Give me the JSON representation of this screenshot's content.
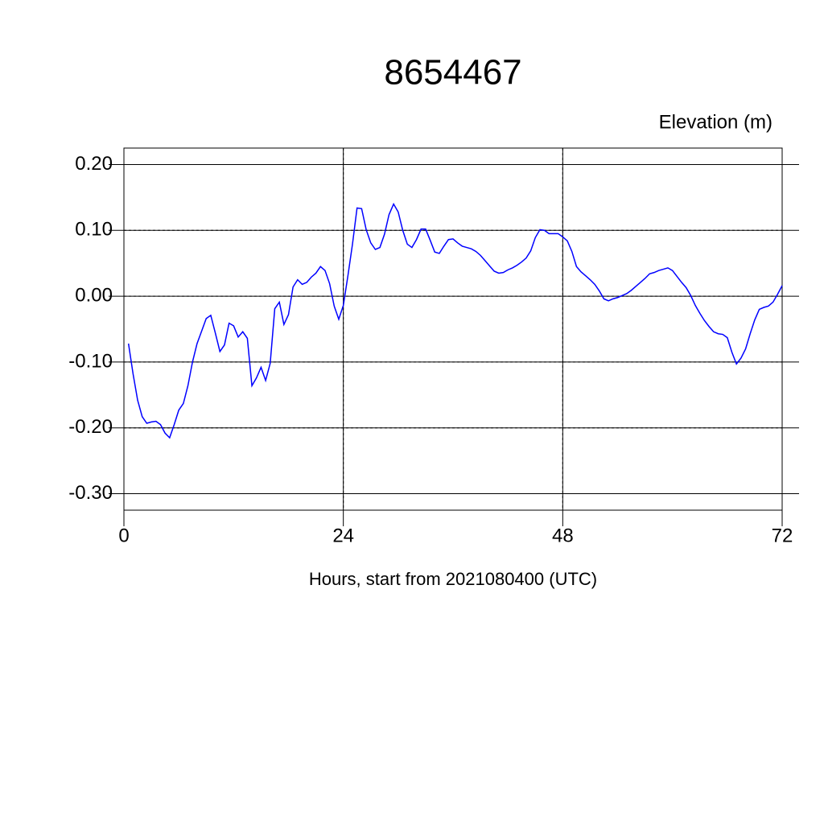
{
  "chart_data": {
    "type": "line",
    "title": "8654467",
    "ylabel": "Elevation (m)",
    "xlabel": "Hours, start from 2021080400 (UTC)",
    "xlim": [
      0,
      72
    ],
    "xticks": [
      0,
      24,
      48,
      72
    ],
    "ylim": [
      -0.325,
      0.225
    ],
    "yticks": [
      {
        "value": -0.3,
        "label": "-0.30"
      },
      {
        "value": -0.2,
        "label": "-0.20"
      },
      {
        "value": -0.1,
        "label": "-0.10"
      },
      {
        "value": 0,
        "label": "0.00"
      },
      {
        "value": 0.1,
        "label": "0.10"
      },
      {
        "value": 0.2,
        "label": "0.20"
      }
    ],
    "grid": true,
    "x": [
      0.5,
      1,
      1.5,
      2,
      2.5,
      3,
      3.5,
      4,
      4.5,
      5,
      5.5,
      6,
      6.5,
      7,
      7.5,
      8,
      8.5,
      9,
      9.5,
      10,
      10.5,
      11,
      11.5,
      12,
      12.5,
      13,
      13.5,
      14,
      14.5,
      15,
      15.5,
      16,
      16.5,
      17,
      17.5,
      18,
      18.5,
      19,
      19.5,
      20,
      20.5,
      21,
      21.5,
      22,
      22.5,
      23,
      23.5,
      24,
      24.5,
      25,
      25.5,
      26,
      26.5,
      27,
      27.5,
      28,
      28.5,
      29,
      29.5,
      30,
      30.5,
      31,
      31.5,
      32,
      32.5,
      33,
      33.5,
      34,
      34.5,
      35,
      35.5,
      36,
      36.5,
      37,
      37.5,
      38,
      38.5,
      39,
      39.5,
      40,
      40.5,
      41,
      41.5,
      42,
      42.5,
      43,
      43.5,
      44,
      44.5,
      45,
      45.5,
      46,
      46.5,
      47,
      47.5,
      48,
      48.5,
      49,
      49.5,
      50,
      50.5,
      51,
      51.5,
      52,
      52.5,
      53,
      53.5,
      54,
      54.5,
      55,
      55.5,
      56,
      56.5,
      57,
      57.5,
      58,
      58.5,
      59,
      59.5,
      60,
      60.5,
      61,
      61.5,
      62,
      62.5,
      63,
      63.5,
      64,
      64.5,
      65,
      65.5,
      66,
      66.5,
      67,
      67.5,
      68,
      68.5,
      69,
      69.5,
      70,
      70.5,
      71,
      71.5,
      72
    ],
    "series": [
      {
        "color": "#0000ff",
        "values": [
          -0.072,
          -0.118,
          -0.158,
          -0.183,
          -0.193,
          -0.191,
          -0.19,
          -0.195,
          -0.208,
          -0.215,
          -0.195,
          -0.173,
          -0.163,
          -0.136,
          -0.1,
          -0.072,
          -0.053,
          -0.034,
          -0.029,
          -0.056,
          -0.084,
          -0.074,
          -0.041,
          -0.045,
          -0.062,
          -0.054,
          -0.064,
          -0.136,
          -0.124,
          -0.108,
          -0.128,
          -0.102,
          -0.019,
          -0.009,
          -0.043,
          -0.028,
          0.014,
          0.025,
          0.018,
          0.021,
          0.029,
          0.035,
          0.045,
          0.039,
          0.019,
          -0.015,
          -0.035,
          -0.014,
          0.031,
          0.079,
          0.134,
          0.133,
          0.101,
          0.081,
          0.071,
          0.074,
          0.094,
          0.124,
          0.14,
          0.128,
          0.1,
          0.079,
          0.074,
          0.086,
          0.102,
          0.102,
          0.085,
          0.067,
          0.065,
          0.076,
          0.086,
          0.087,
          0.081,
          0.076,
          0.074,
          0.072,
          0.068,
          0.062,
          0.054,
          0.046,
          0.038,
          0.035,
          0.036,
          0.04,
          0.043,
          0.047,
          0.052,
          0.058,
          0.069,
          0.089,
          0.101,
          0.1,
          0.095,
          0.095,
          0.095,
          0.09,
          0.084,
          0.068,
          0.045,
          0.037,
          0.031,
          0.025,
          0.018,
          0.008,
          -0.004,
          -0.007,
          -0.004,
          -0.002,
          0.001,
          0.004,
          0.009,
          0.015,
          0.021,
          0.027,
          0.034,
          0.036,
          0.039,
          0.041,
          0.043,
          0.039,
          0.03,
          0.021,
          0.013,
          0.001,
          -0.014,
          -0.026,
          -0.037,
          -0.046,
          -0.054,
          -0.057,
          -0.058,
          -0.063,
          -0.085,
          -0.103,
          -0.094,
          -0.08,
          -0.057,
          -0.036,
          -0.02,
          -0.017,
          -0.015,
          -0.009,
          0.003,
          0.016
        ]
      }
    ]
  }
}
